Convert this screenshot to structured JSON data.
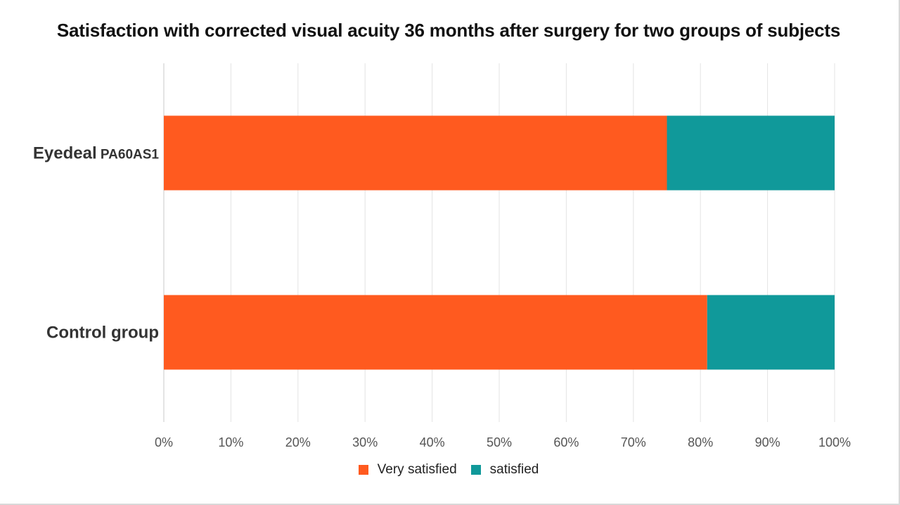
{
  "chart_data": {
    "type": "bar",
    "orientation": "horizontal",
    "stacked": true,
    "title": "Satisfaction with corrected visual acuity 36 months after surgery for two groups of subjects",
    "categories": [
      {
        "main": "Eyedeal",
        "sub": "PA60AS1"
      },
      {
        "main": "Control group",
        "sub": ""
      }
    ],
    "series": [
      {
        "name": "Very satisfied",
        "color": "#ff5a1f",
        "values": [
          75,
          81
        ]
      },
      {
        "name": "satisfied",
        "color": "#10999a",
        "values": [
          25,
          19
        ]
      }
    ],
    "xlim": [
      0,
      100
    ],
    "x_ticks": [
      "0%",
      "10%",
      "20%",
      "30%",
      "40%",
      "50%",
      "60%",
      "70%",
      "80%",
      "90%",
      "100%"
    ],
    "grid": true,
    "legend_position": "bottom"
  }
}
